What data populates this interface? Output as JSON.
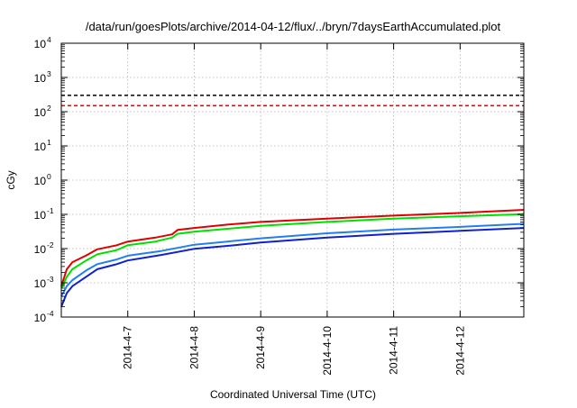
{
  "chart_data": {
    "type": "line",
    "title": "/data/run/goesPlots/archive/2014-04-12/flux/../bryn/7daysEarthAccumulated.plot",
    "xlabel": "Coordinated Universal Time (UTC)",
    "ylabel": "cGy",
    "yscale": "log",
    "ylim": [
      0.0001,
      10000
    ],
    "xlim": [
      "2014-04-06T00:00",
      "2014-04-12T23:00"
    ],
    "grid": true,
    "legend": "none",
    "y_tick_labels": [
      {
        "base": "10",
        "exp": "-4",
        "value": 0.0001
      },
      {
        "base": "10",
        "exp": "-3",
        "value": 0.001
      },
      {
        "base": "10",
        "exp": "-2",
        "value": 0.01
      },
      {
        "base": "10",
        "exp": "-1",
        "value": 0.1
      },
      {
        "base": "10",
        "exp": "0",
        "value": 1
      },
      {
        "base": "10",
        "exp": "1",
        "value": 10
      },
      {
        "base": "10",
        "exp": "2",
        "value": 100
      },
      {
        "base": "10",
        "exp": "3",
        "value": 1000
      },
      {
        "base": "10",
        "exp": "4",
        "value": 10000
      }
    ],
    "x_tick_labels": [
      {
        "label": "2014-4-7",
        "date": "2014-04-07T00:00"
      },
      {
        "label": "2014-4-8",
        "date": "2014-04-08T00:00"
      },
      {
        "label": "2014-4-9",
        "date": "2014-04-09T00:00"
      },
      {
        "label": "2014-4-10",
        "date": "2014-04-10T00:00"
      },
      {
        "label": "2014-4-11",
        "date": "2014-04-11T00:00"
      },
      {
        "label": "2014-4-12",
        "date": "2014-04-12T00:00"
      }
    ],
    "thresholds": [
      {
        "value": 300,
        "color": "#000000",
        "style": "dashed"
      },
      {
        "value": 150,
        "color": "#ff0000",
        "style": "dashed"
      }
    ],
    "series": [
      {
        "color": "#e00000",
        "points": [
          [
            "2014-04-06T00:00",
            0.0008
          ],
          [
            "2014-04-06T02:00",
            0.0025
          ],
          [
            "2014-04-06T04:00",
            0.004
          ],
          [
            "2014-04-06T09:00",
            0.0063
          ],
          [
            "2014-04-06T13:00",
            0.0095
          ],
          [
            "2014-04-06T20:00",
            0.0125
          ],
          [
            "2014-04-07T00:00",
            0.016
          ],
          [
            "2014-04-07T10:00",
            0.021
          ],
          [
            "2014-04-07T16:00",
            0.026
          ],
          [
            "2014-04-07T18:00",
            0.035
          ],
          [
            "2014-04-08T00:00",
            0.04
          ],
          [
            "2014-04-08T12:00",
            0.05
          ],
          [
            "2014-04-09T00:00",
            0.06
          ],
          [
            "2014-04-10T00:00",
            0.075
          ],
          [
            "2014-04-11T00:00",
            0.092
          ],
          [
            "2014-04-12T00:00",
            0.11
          ],
          [
            "2014-04-12T23:00",
            0.135
          ]
        ]
      },
      {
        "color": "#00e000",
        "points": [
          [
            "2014-04-06T00:00",
            0.0007
          ],
          [
            "2014-04-06T02:00",
            0.0015
          ],
          [
            "2014-04-06T04:00",
            0.0025
          ],
          [
            "2014-04-06T09:00",
            0.0045
          ],
          [
            "2014-04-06T13:00",
            0.0068
          ],
          [
            "2014-04-06T20:00",
            0.009
          ],
          [
            "2014-04-07T00:00",
            0.0125
          ],
          [
            "2014-04-07T10:00",
            0.016
          ],
          [
            "2014-04-07T16:00",
            0.021
          ],
          [
            "2014-04-07T18:00",
            0.027
          ],
          [
            "2014-04-08T00:00",
            0.031
          ],
          [
            "2014-04-08T12:00",
            0.038
          ],
          [
            "2014-04-09T00:00",
            0.046
          ],
          [
            "2014-04-10T00:00",
            0.06
          ],
          [
            "2014-04-11T00:00",
            0.075
          ],
          [
            "2014-04-12T00:00",
            0.088
          ],
          [
            "2014-04-12T23:00",
            0.102
          ]
        ]
      },
      {
        "color": "#2080f0",
        "points": [
          [
            "2014-04-06T00:00",
            0.0004
          ],
          [
            "2014-04-06T02:00",
            0.0008
          ],
          [
            "2014-04-06T04:00",
            0.0012
          ],
          [
            "2014-04-06T09:00",
            0.0023
          ],
          [
            "2014-04-06T13:00",
            0.0035
          ],
          [
            "2014-04-06T20:00",
            0.0048
          ],
          [
            "2014-04-07T00:00",
            0.0062
          ],
          [
            "2014-04-07T12:00",
            0.0085
          ],
          [
            "2014-04-08T00:00",
            0.013
          ],
          [
            "2014-04-08T12:00",
            0.016
          ],
          [
            "2014-04-09T00:00",
            0.02
          ],
          [
            "2014-04-10T00:00",
            0.028
          ],
          [
            "2014-04-11T00:00",
            0.036
          ],
          [
            "2014-04-12T00:00",
            0.043
          ],
          [
            "2014-04-12T23:00",
            0.053
          ]
        ]
      },
      {
        "color": "#1020d0",
        "points": [
          [
            "2014-04-06T00:00",
            0.0002
          ],
          [
            "2014-04-06T02:00",
            0.0005
          ],
          [
            "2014-04-06T04:00",
            0.0008
          ],
          [
            "2014-04-06T09:00",
            0.0015
          ],
          [
            "2014-04-06T13:00",
            0.0025
          ],
          [
            "2014-04-06T20:00",
            0.0035
          ],
          [
            "2014-04-07T00:00",
            0.0045
          ],
          [
            "2014-04-07T12:00",
            0.0065
          ],
          [
            "2014-04-08T00:00",
            0.0098
          ],
          [
            "2014-04-08T12:00",
            0.012
          ],
          [
            "2014-04-09T00:00",
            0.015
          ],
          [
            "2014-04-10T00:00",
            0.021
          ],
          [
            "2014-04-11T00:00",
            0.027
          ],
          [
            "2014-04-12T00:00",
            0.033
          ],
          [
            "2014-04-12T23:00",
            0.04
          ]
        ]
      }
    ]
  }
}
